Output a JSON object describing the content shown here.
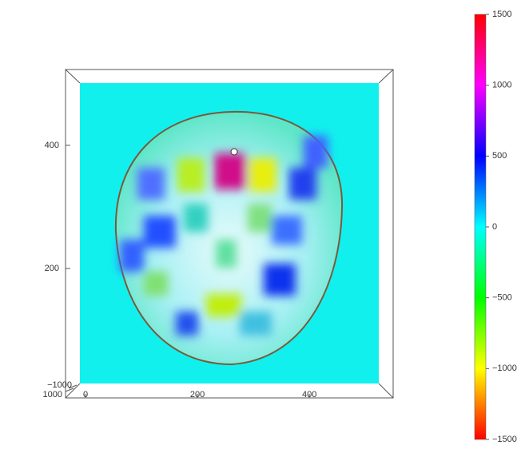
{
  "chart_data": {
    "type": "surface",
    "xlim": [
      -10,
      524
    ],
    "xticks": [
      0,
      200,
      400
    ],
    "ylim": [
      -10,
      523
    ],
    "yticks": [
      200,
      400
    ],
    "zticks": [
      {
        "value": -1000,
        "label": "−1000"
      },
      1000
    ],
    "clim": [
      -1500,
      1500
    ],
    "cticks": [
      1500,
      1000,
      500,
      0,
      {
        "value": -500,
        "label": "−500"
      },
      {
        "value": -1000,
        "label": "−1000"
      },
      {
        "value": -1500,
        "label": "−1500"
      }
    ],
    "colormap": [
      "#ff0000",
      "#ff00ff",
      "#0000ff",
      "#00ffff",
      "#00ff00",
      "#ffff00",
      "#ff0000"
    ]
  }
}
